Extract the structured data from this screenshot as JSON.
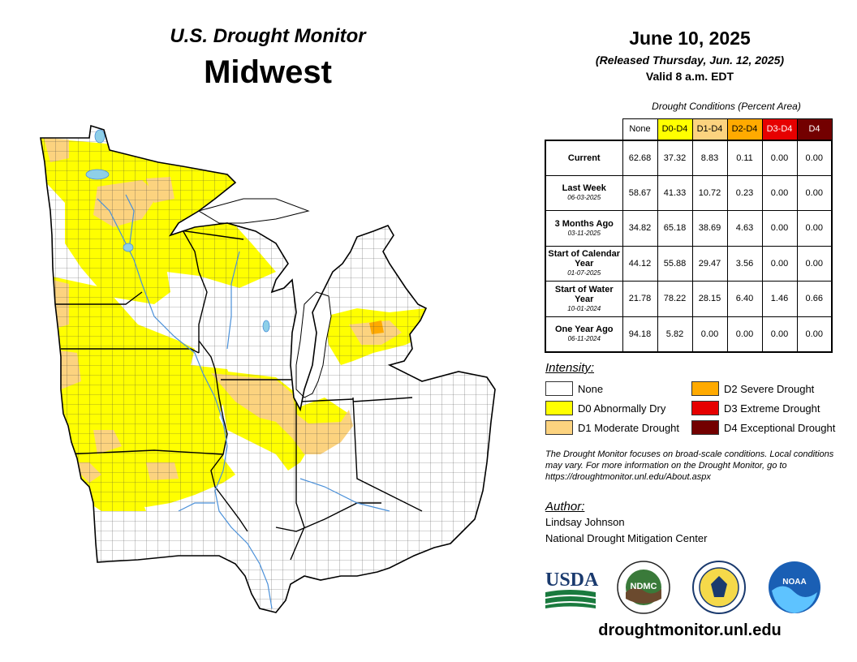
{
  "header": {
    "subtitle": "U.S. Drought Monitor",
    "title": "Midwest",
    "date": "June 10, 2025",
    "released": "(Released Thursday, Jun. 12, 2025)",
    "valid": "Valid 8 a.m. EDT"
  },
  "table": {
    "caption": "Drought Conditions (Percent Area)",
    "columns": [
      "None",
      "D0-D4",
      "D1-D4",
      "D2-D4",
      "D3-D4",
      "D4"
    ],
    "rows": [
      {
        "label": "Current",
        "date": "",
        "values": [
          "62.68",
          "37.32",
          "8.83",
          "0.11",
          "0.00",
          "0.00"
        ]
      },
      {
        "label": "Last Week",
        "date": "06-03-2025",
        "values": [
          "58.67",
          "41.33",
          "10.72",
          "0.23",
          "0.00",
          "0.00"
        ]
      },
      {
        "label": "3 Months Ago",
        "date": "03-11-2025",
        "values": [
          "34.82",
          "65.18",
          "38.69",
          "4.63",
          "0.00",
          "0.00"
        ]
      },
      {
        "label": "Start of Calendar Year",
        "date": "01-07-2025",
        "values": [
          "44.12",
          "55.88",
          "29.47",
          "3.56",
          "0.00",
          "0.00"
        ]
      },
      {
        "label": "Start of Water Year",
        "date": "10-01-2024",
        "values": [
          "21.78",
          "78.22",
          "28.15",
          "6.40",
          "1.46",
          "0.66"
        ]
      },
      {
        "label": "One Year Ago",
        "date": "06-11-2024",
        "values": [
          "94.18",
          "5.82",
          "0.00",
          "0.00",
          "0.00",
          "0.00"
        ]
      }
    ]
  },
  "legend": {
    "title": "Intensity:",
    "items": [
      {
        "label": "None",
        "color": "#ffffff"
      },
      {
        "label": "D0 Abnormally Dry",
        "color": "#ffff00"
      },
      {
        "label": "D1 Moderate Drought",
        "color": "#fcd37f"
      },
      {
        "label": "D2 Severe Drought",
        "color": "#ffaa00"
      },
      {
        "label": "D3 Extreme Drought",
        "color": "#e60000"
      },
      {
        "label": "D4 Exceptional Drought",
        "color": "#730000"
      }
    ]
  },
  "note": "The Drought Monitor focuses on broad-scale conditions. Local conditions may vary. For more information on the Drought Monitor, go to https://droughtmonitor.unl.edu/About.aspx",
  "author": {
    "label": "Author:",
    "name": "Lindsay Johnson",
    "org": "National Drought Mitigation Center"
  },
  "logos": {
    "usda": "USDA",
    "ndmc": "NDMC",
    "noaa": "NOAA"
  },
  "website": "droughtmonitor.unl.edu",
  "map": {
    "colors": {
      "none": "#ffffff",
      "d0": "#ffff00",
      "d1": "#fcd37f",
      "d2": "#ffaa00",
      "water": "#8ecfe8",
      "river": "#4a90d9"
    }
  }
}
